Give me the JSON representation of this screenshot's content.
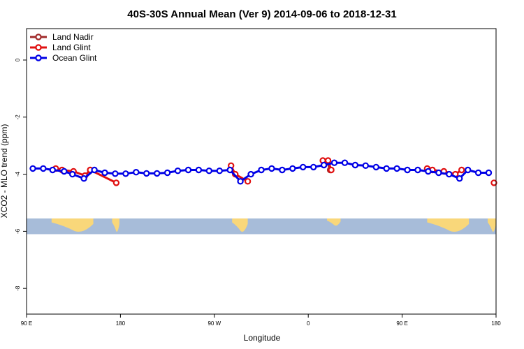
{
  "chart_data": {
    "type": "line",
    "title": "40S-30S Annual Mean (Ver 9)   2014-09-06 to 2018-12-31",
    "xlabel": "Longitude",
    "ylabel": "XCO2 - MLO trend (ppm)",
    "xlim": [
      90,
      540
    ],
    "ylim": [
      -8.9,
      1.1
    ],
    "x_ticks": [
      {
        "value": 90,
        "label": "90 E"
      },
      {
        "value": 180,
        "label": "180"
      },
      {
        "value": 270,
        "label": "90 W"
      },
      {
        "value": 360,
        "label": "0"
      },
      {
        "value": 450,
        "label": "90 E"
      },
      {
        "value": 540,
        "label": "180"
      }
    ],
    "y_ticks": [
      {
        "value": 0,
        "label": "0"
      },
      {
        "value": -2,
        "label": "-2"
      },
      {
        "value": -4,
        "label": "-4"
      },
      {
        "value": -6,
        "label": "-6"
      },
      {
        "value": -8,
        "label": "-8"
      }
    ],
    "legend_position": "top-left",
    "map_strip": {
      "y_range": [
        -6.1,
        -5.55
      ],
      "ocean_color": "#a7bcd9",
      "land_color": "#f9d77a",
      "land_regions": [
        {
          "name": "australia",
          "x": [
            114,
            154
          ],
          "y": [
            -5.55,
            -6.1
          ]
        },
        {
          "name": "new-zealand",
          "x": [
            172,
            179
          ],
          "y": [
            -5.55,
            -6.1
          ]
        },
        {
          "name": "south-america",
          "x": [
            287,
            302
          ],
          "y": [
            -5.55,
            -6.1
          ]
        },
        {
          "name": "africa",
          "x": [
            378,
            391
          ],
          "y": [
            -5.55,
            -5.85
          ]
        },
        {
          "name": "australia-repeat",
          "x": [
            474,
            514
          ],
          "y": [
            -5.55,
            -6.1
          ]
        },
        {
          "name": "new-zealand-repeat",
          "x": [
            532,
            540
          ],
          "y": [
            -5.55,
            -6.1
          ]
        }
      ]
    },
    "series": [
      {
        "name": "Land Nadir",
        "color": "#a02a2a",
        "segments": [
          [
            [
              378,
              -3.55
            ],
            [
              381,
              -3.85
            ]
          ]
        ]
      },
      {
        "name": "Land Glint",
        "color": "#e01010",
        "segments": [
          [
            [
              118,
              -3.8
            ],
            [
              124,
              -3.85
            ],
            [
              135,
              -3.9
            ],
            [
              146,
              -4.05
            ],
            [
              151,
              -3.85
            ],
            [
              176,
              -4.3
            ]
          ],
          [
            [
              286,
              -3.7
            ],
            [
              290,
              -4.0
            ],
            [
              302,
              -4.25
            ]
          ],
          [
            [
              374,
              -3.52
            ],
            [
              379,
              -3.52
            ],
            [
              382,
              -3.85
            ]
          ],
          [
            [
              474,
              -3.8
            ],
            [
              479,
              -3.85
            ],
            [
              490,
              -3.9
            ],
            [
              501,
              -4.0
            ],
            [
              507,
              -3.85
            ]
          ],
          [
            [
              538,
              -4.3
            ]
          ]
        ]
      },
      {
        "name": "Ocean Glint",
        "color": "#0000e6",
        "segments": [
          [
            [
              96,
              -3.8
            ],
            [
              106,
              -3.8
            ],
            [
              115,
              -3.85
            ],
            [
              126,
              -3.9
            ],
            [
              134,
              -4.0
            ],
            [
              145,
              -4.15
            ],
            [
              155,
              -3.85
            ],
            [
              165,
              -3.95
            ],
            [
              175,
              -3.98
            ],
            [
              185,
              -3.98
            ],
            [
              195,
              -3.93
            ],
            [
              205,
              -3.97
            ],
            [
              215,
              -3.97
            ],
            [
              225,
              -3.95
            ],
            [
              235,
              -3.88
            ],
            [
              245,
              -3.85
            ],
            [
              255,
              -3.85
            ],
            [
              265,
              -3.88
            ],
            [
              275,
              -3.88
            ],
            [
              285,
              -3.85
            ],
            [
              295,
              -4.25
            ],
            [
              305,
              -4.0
            ],
            [
              315,
              -3.85
            ],
            [
              325,
              -3.8
            ],
            [
              335,
              -3.85
            ],
            [
              345,
              -3.8
            ],
            [
              355,
              -3.75
            ],
            [
              365,
              -3.75
            ],
            [
              375,
              -3.68
            ],
            [
              385,
              -3.6
            ],
            [
              395,
              -3.6
            ],
            [
              405,
              -3.68
            ],
            [
              415,
              -3.7
            ],
            [
              425,
              -3.75
            ],
            [
              435,
              -3.8
            ],
            [
              445,
              -3.8
            ],
            [
              455,
              -3.85
            ],
            [
              465,
              -3.85
            ],
            [
              475,
              -3.9
            ],
            [
              485,
              -3.95
            ],
            [
              495,
              -4.0
            ],
            [
              505,
              -4.15
            ],
            [
              513,
              -3.85
            ],
            [
              523,
              -3.95
            ],
            [
              533,
              -3.95
            ]
          ]
        ]
      }
    ]
  }
}
